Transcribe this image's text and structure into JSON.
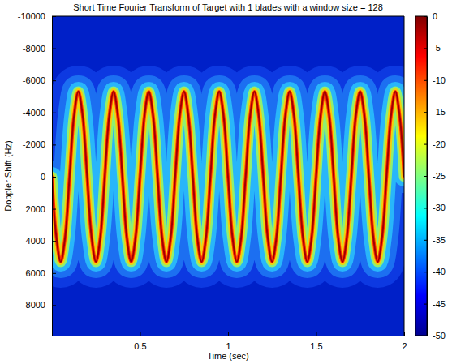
{
  "chart_data": {
    "type": "line",
    "title": "Short Time Fourier Transform of Target with 1 blades with a window size = 128",
    "x_label": "Time (sec)",
    "y_label": "Doppler Shift (Hz)",
    "x": [
      0,
      0.025,
      0.05,
      0.075,
      0.1,
      0.125,
      0.15,
      0.175,
      0.2,
      0.225,
      0.25,
      0.275,
      0.3,
      0.325,
      0.35,
      0.375,
      0.4,
      0.425,
      0.45,
      0.475,
      0.5,
      0.525,
      0.55,
      0.575,
      0.6,
      0.625,
      0.65,
      0.675,
      0.7,
      0.725,
      0.75,
      0.775,
      0.8,
      0.825,
      0.85,
      0.875,
      0.9,
      0.925,
      0.95,
      0.975,
      1,
      1.025,
      1.05,
      1.075,
      1.1,
      1.125,
      1.15,
      1.175,
      1.2,
      1.225,
      1.25,
      1.275,
      1.3,
      1.325,
      1.35,
      1.375,
      1.4,
      1.425,
      1.45,
      1.475,
      1.5,
      1.525,
      1.55,
      1.575,
      1.6,
      1.625,
      1.65,
      1.675,
      1.7,
      1.725,
      1.75,
      1.775,
      1.8,
      1.825,
      1.85,
      1.875,
      1.9,
      1.925,
      1.95,
      1.975,
      2
    ],
    "values": [
      0,
      3750,
      5300,
      3750,
      0,
      -3750,
      -5300,
      -3750,
      0,
      3750,
      5300,
      3750,
      0,
      -3750,
      -5300,
      -3750,
      0,
      3750,
      5300,
      3750,
      0,
      -3750,
      -5300,
      -3750,
      0,
      3750,
      5300,
      3750,
      0,
      -3750,
      -5300,
      -3750,
      0,
      3750,
      5300,
      3750,
      0,
      -3750,
      -5300,
      -3750,
      0,
      3750,
      5300,
      3750,
      0,
      -3750,
      -5300,
      -3750,
      0,
      3750,
      5300,
      3750,
      0,
      -3750,
      -5300,
      -3750,
      0,
      3750,
      5300,
      3750,
      0,
      -3750,
      -5300,
      -3750,
      0,
      3750,
      5300,
      3750,
      0,
      -3750,
      -5300,
      -3750,
      0,
      3750,
      5300,
      3750,
      0,
      -3750,
      -5300,
      -3750,
      0
    ],
    "color": "#a00000",
    "xlim": [
      0,
      2
    ],
    "xticks": [
      0.5,
      1,
      1.5,
      2
    ],
    "ylim": [
      -10000,
      9900
    ],
    "yticks": [
      -10000,
      -8000,
      -6000,
      -4000,
      -2000,
      0,
      2000,
      4000,
      6000,
      8000
    ],
    "colorbar": {
      "range": [
        -50,
        0
      ],
      "ticks": [
        0,
        -5,
        -10,
        -15,
        -20,
        -25,
        -30,
        -35,
        -40,
        -45,
        -50
      ]
    }
  }
}
